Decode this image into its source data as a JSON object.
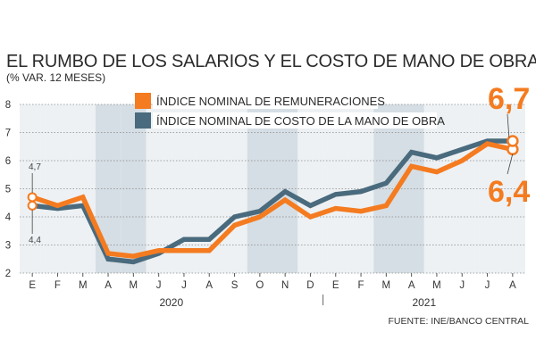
{
  "header": {
    "title": "EL RUMBO DE LOS SALARIOS Y EL COSTO DE MANO DE OBRA",
    "subtitle": "(% VAR. 12 MESES)"
  },
  "footer": {
    "source": "FUENTE: INE/BANCO CENTRAL"
  },
  "annotations": {
    "end_top": "6,7",
    "end_bottom": "6,4",
    "start_top": "4,7",
    "start_bottom": "4,4"
  },
  "chart_data": {
    "type": "line",
    "title": "EL RUMBO DE LOS SALARIOS Y EL COSTO DE MANO DE OBRA",
    "subtitle": "(% VAR. 12 MESES)",
    "xlabel": "",
    "ylabel": "",
    "categories": [
      "E",
      "F",
      "M",
      "A",
      "M",
      "J",
      "J",
      "A",
      "S",
      "O",
      "N",
      "D",
      "E",
      "F",
      "M",
      "A",
      "M",
      "J",
      "J",
      "A"
    ],
    "years": [
      {
        "label": "2020",
        "start_index": 0,
        "end_index": 11
      },
      {
        "label": "2021",
        "start_index": 12,
        "end_index": 19
      }
    ],
    "ylim": [
      2,
      8
    ],
    "yticks": [
      2,
      3,
      4,
      5,
      6,
      7,
      8
    ],
    "shaded_bands": [
      [
        3,
        4
      ],
      [
        9,
        10
      ],
      [
        14,
        15
      ]
    ],
    "grid": true,
    "legend_position": "top-left",
    "series": [
      {
        "name": "ÍNDICE NOMINAL DE REMUNERACIONES",
        "color": "#f47b20",
        "values": [
          4.7,
          4.4,
          4.7,
          2.7,
          2.6,
          2.8,
          2.8,
          2.8,
          3.7,
          4.0,
          4.6,
          4.0,
          4.3,
          4.2,
          4.4,
          5.8,
          5.6,
          6.0,
          6.6,
          6.4
        ]
      },
      {
        "name": "ÍNDICE NOMINAL DE COSTO DE LA MANO DE OBRA",
        "color": "#4a6a7d",
        "values": [
          4.4,
          4.3,
          4.4,
          2.5,
          2.4,
          2.7,
          3.2,
          3.2,
          4.0,
          4.2,
          4.9,
          4.4,
          4.8,
          4.9,
          5.2,
          6.3,
          6.1,
          6.4,
          6.7,
          6.7
        ]
      }
    ],
    "source": "FUENTE: INE/BANCO CENTRAL"
  }
}
